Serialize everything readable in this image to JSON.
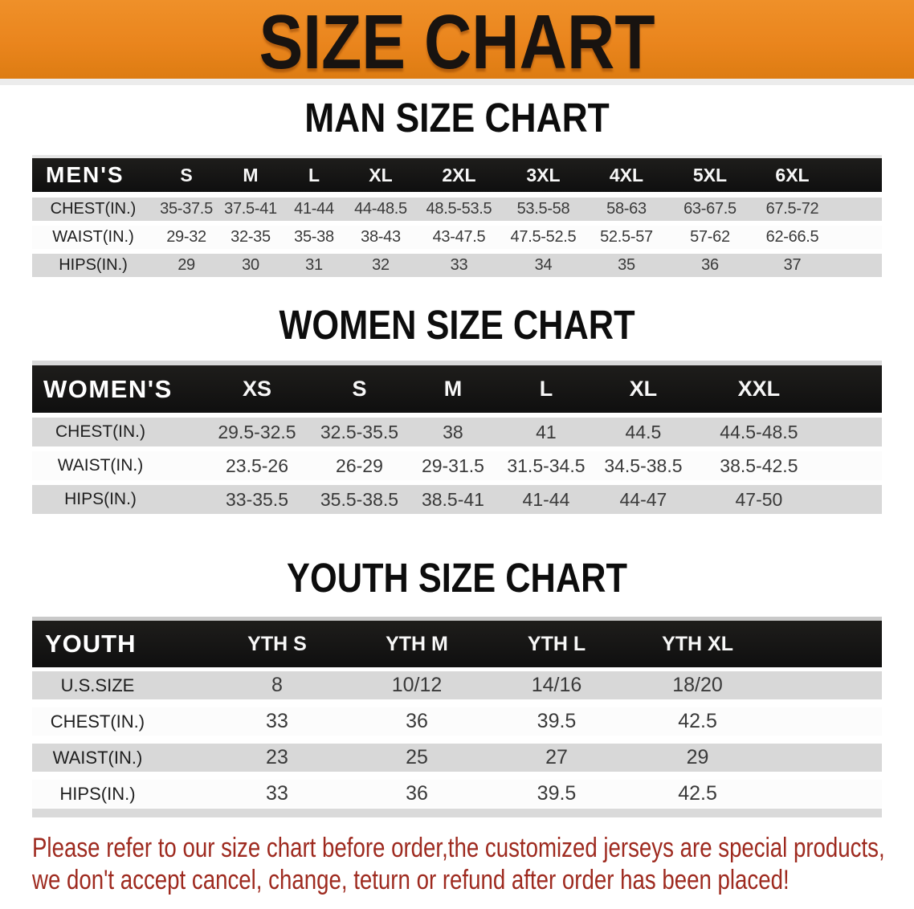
{
  "banner": {
    "title": "SIZE CHART",
    "bg_color": "#ea851d"
  },
  "sections": [
    {
      "heading": "MAN SIZE CHART",
      "table": {
        "label": "MEN'S",
        "columns": [
          "S",
          "M",
          "L",
          "XL",
          "2XL",
          "3XL",
          "4XL",
          "5XL",
          "6XL"
        ],
        "rows": [
          {
            "label": "CHEST(IN.)",
            "values": [
              "35-37.5",
              "37.5-41",
              "41-44",
              "44-48.5",
              "48.5-53.5",
              "53.5-58",
              "58-63",
              "63-67.5",
              "67.5-72"
            ]
          },
          {
            "label": "WAIST(IN.)",
            "values": [
              "29-32",
              "32-35",
              "35-38",
              "38-43",
              "43-47.5",
              "47.5-52.5",
              "52.5-57",
              "57-62",
              "62-66.5"
            ]
          },
          {
            "label": "HIPS(IN.)",
            "values": [
              "29",
              "30",
              "31",
              "32",
              "33",
              "34",
              "35",
              "36",
              "37"
            ]
          }
        ]
      }
    },
    {
      "heading": "WOMEN SIZE CHART",
      "table": {
        "label": "WOMEN'S",
        "columns": [
          "XS",
          "S",
          "M",
          "L",
          "XL",
          "XXL"
        ],
        "rows": [
          {
            "label": "CHEST(IN.)",
            "values": [
              "29.5-32.5",
              "32.5-35.5",
              "38",
              "41",
              "44.5",
              "44.5-48.5"
            ]
          },
          {
            "label": "WAIST(IN.)",
            "values": [
              "23.5-26",
              "26-29",
              "29-31.5",
              "31.5-34.5",
              "34.5-38.5",
              "38.5-42.5"
            ]
          },
          {
            "label": "HIPS(IN.)",
            "values": [
              "33-35.5",
              "35.5-38.5",
              "38.5-41",
              "41-44",
              "44-47",
              "47-50"
            ]
          }
        ]
      }
    },
    {
      "heading": "YOUTH SIZE CHART",
      "table": {
        "label": "YOUTH",
        "columns": [
          "YTH S",
          "YTH M",
          "YTH L",
          "YTH XL"
        ],
        "rows": [
          {
            "label": "U.S.SIZE",
            "values": [
              "8",
              "10/12",
              "14/16",
              "18/20"
            ]
          },
          {
            "label": "CHEST(IN.)",
            "values": [
              "33",
              "36",
              "39.5",
              "42.5"
            ]
          },
          {
            "label": "WAIST(IN.)",
            "values": [
              "23",
              "25",
              "27",
              "29"
            ]
          },
          {
            "label": "HIPS(IN.)",
            "values": [
              "33",
              "36",
              "39.5",
              "42.5"
            ]
          }
        ]
      }
    }
  ],
  "note": {
    "line1": "Please refer to our size chart before order,the customized jerseys are special products,",
    "line2": "we don't accept cancel, change, teturn or refund after order has been placed!",
    "color": "#9e2a1f"
  }
}
